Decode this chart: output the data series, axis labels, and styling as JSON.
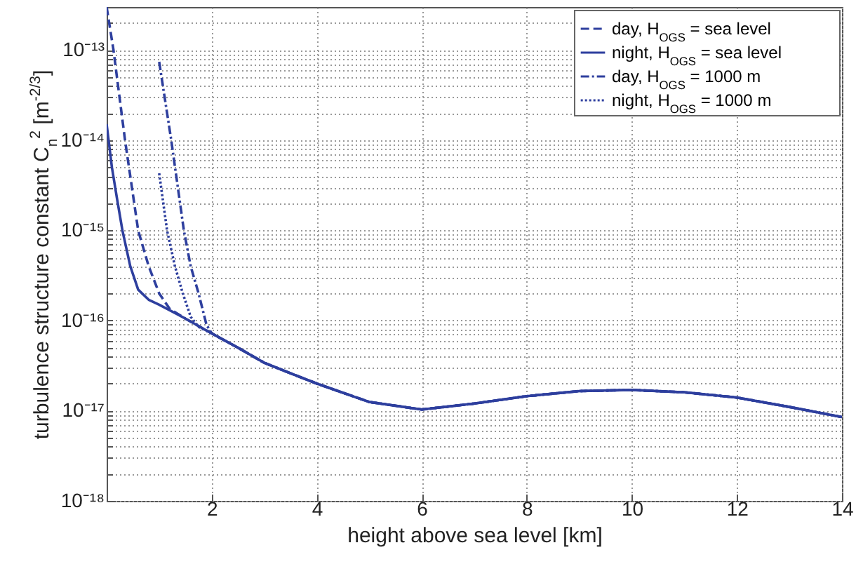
{
  "chart_data": {
    "type": "line",
    "xlabel": "height above sea level [km]",
    "ylabel": "turbulence structure constant C$_{n}$$^{2}$ [m$^{-2/3}$]",
    "log": "y",
    "grid": true,
    "legend": "top right",
    "marker": "none",
    "xlim": [
      0,
      14
    ],
    "xticks": [
      2,
      4,
      6,
      8,
      10,
      12,
      14
    ],
    "ylim": [
      1e-18,
      3e-13
    ],
    "yticks": [
      {
        "value": 1e-18,
        "label": "10⁻¹⁸"
      },
      {
        "value": 2e-18,
        "label": null
      },
      {
        "value": 3e-18,
        "label": null
      },
      {
        "value": 4e-18,
        "label": null
      },
      {
        "value": 5e-18,
        "label": null
      },
      {
        "value": 6e-18,
        "label": null
      },
      {
        "value": 7e-18,
        "label": null
      },
      {
        "value": 8e-18,
        "label": null
      },
      {
        "value": 9e-18,
        "label": null
      },
      {
        "value": 1e-17,
        "label": "10⁻¹⁷"
      },
      {
        "value": 2e-17,
        "label": null
      },
      {
        "value": 3e-17,
        "label": null
      },
      {
        "value": 4e-17,
        "label": null
      },
      {
        "value": 5e-17,
        "label": null
      },
      {
        "value": 6e-17,
        "label": null
      },
      {
        "value": 7e-17,
        "label": null
      },
      {
        "value": 8e-17,
        "label": null
      },
      {
        "value": 9e-17,
        "label": null
      },
      {
        "value": 1e-16,
        "label": "10⁻¹⁶"
      },
      {
        "value": 2e-16,
        "label": null
      },
      {
        "value": 3e-16,
        "label": null
      },
      {
        "value": 4e-16,
        "label": null
      },
      {
        "value": 5e-16,
        "label": null
      },
      {
        "value": 6e-16,
        "label": null
      },
      {
        "value": 7e-16,
        "label": null
      },
      {
        "value": 8e-16,
        "label": null
      },
      {
        "value": 9e-16,
        "label": null
      },
      {
        "value": 1e-15,
        "label": "10⁻¹⁵"
      },
      {
        "value": 2e-15,
        "label": null
      },
      {
        "value": 3e-15,
        "label": null
      },
      {
        "value": 4e-15,
        "label": null
      },
      {
        "value": 5e-15,
        "label": null
      },
      {
        "value": 6e-15,
        "label": null
      },
      {
        "value": 7e-15,
        "label": null
      },
      {
        "value": 8e-15,
        "label": null
      },
      {
        "value": 9e-15,
        "label": null
      },
      {
        "value": 1e-14,
        "label": "10⁻¹⁴"
      },
      {
        "value": 2e-14,
        "label": null
      },
      {
        "value": 3e-14,
        "label": null
      },
      {
        "value": 4e-14,
        "label": null
      },
      {
        "value": 5e-14,
        "label": null
      },
      {
        "value": 6e-14,
        "label": null
      },
      {
        "value": 7e-14,
        "label": null
      },
      {
        "value": 8e-14,
        "label": null
      },
      {
        "value": 9e-14,
        "label": null
      },
      {
        "value": 1e-13,
        "label": "10⁻¹³"
      },
      {
        "value": 2e-13,
        "label": null
      }
    ],
    "series": [
      {
        "name": "day, H$_{OGS}$ = sea level",
        "color": "#2e3f9e",
        "line_style": "dashed",
        "x": [
          0,
          0.13,
          0.35,
          0.6,
          0.8,
          1.0,
          1.2,
          1.5,
          2,
          2.5,
          3,
          3.5,
          4,
          5,
          6,
          7,
          8,
          9,
          10,
          11,
          12,
          13,
          14
        ],
        "values": [
          3e-13,
          1e-13,
          1e-14,
          1e-15,
          4e-16,
          2e-16,
          1.35e-16,
          1.05e-16,
          7.2e-17,
          5e-17,
          3.4e-17,
          2.6e-17,
          2e-17,
          1.25e-17,
          1.03e-17,
          1.2e-17,
          1.45e-17,
          1.65e-17,
          1.7e-17,
          1.6e-17,
          1.4e-17,
          1.1e-17,
          8.5e-18
        ]
      },
      {
        "name": "night, H$_{OGS}$ = sea level",
        "color": "#2e3f9e",
        "line_style": "solid",
        "x": [
          0,
          0.1,
          0.2,
          0.3,
          0.45,
          0.6,
          0.8,
          1,
          1.5,
          2,
          2.5,
          3,
          3.5,
          4,
          5,
          6,
          7,
          8,
          9,
          10,
          11,
          12,
          13,
          14
        ],
        "values": [
          1.5e-14,
          5e-15,
          2.2e-15,
          1e-15,
          4e-16,
          2.2e-16,
          1.7e-16,
          1.5e-16,
          1.05e-16,
          7.2e-17,
          5e-17,
          3.4e-17,
          2.6e-17,
          2e-17,
          1.25e-17,
          1.03e-17,
          1.2e-17,
          1.45e-17,
          1.65e-17,
          1.7e-17,
          1.6e-17,
          1.4e-17,
          1.1e-17,
          8.5e-18
        ]
      },
      {
        "name": "day, H$_{OGS}$ = 1000 m",
        "color": "#2e3f9e",
        "line_style": "dashdot",
        "x": [
          1,
          1.23,
          1.47,
          1.6,
          1.75,
          1.9,
          2,
          2.5,
          3,
          3.5,
          4,
          5,
          6,
          7,
          8,
          9,
          10,
          11,
          12,
          13,
          14
        ],
        "values": [
          7.4e-14,
          1e-14,
          1e-15,
          4e-16,
          2e-16,
          9e-17,
          7.2e-17,
          5e-17,
          3.4e-17,
          2.6e-17,
          2e-17,
          1.25e-17,
          1.03e-17,
          1.2e-17,
          1.45e-17,
          1.65e-17,
          1.7e-17,
          1.6e-17,
          1.4e-17,
          1.1e-17,
          8.5e-18
        ]
      },
      {
        "name": "night, H$_{OGS}$ = 1000 m",
        "color": "#2e3f9e",
        "line_style": "dotted",
        "x": [
          1,
          1.15,
          1.3,
          1.45,
          1.6,
          1.75,
          2,
          2.5,
          3,
          3.5,
          4,
          5,
          6,
          7,
          8,
          9,
          10,
          11,
          12,
          13,
          14
        ],
        "values": [
          4.3e-15,
          1e-15,
          4e-16,
          2e-16,
          1.1e-16,
          8.5e-17,
          7.2e-17,
          5e-17,
          3.4e-17,
          2.6e-17,
          2e-17,
          1.25e-17,
          1.03e-17,
          1.2e-17,
          1.45e-17,
          1.65e-17,
          1.7e-17,
          1.6e-17,
          1.4e-17,
          1.1e-17,
          8.5e-18
        ]
      }
    ]
  }
}
